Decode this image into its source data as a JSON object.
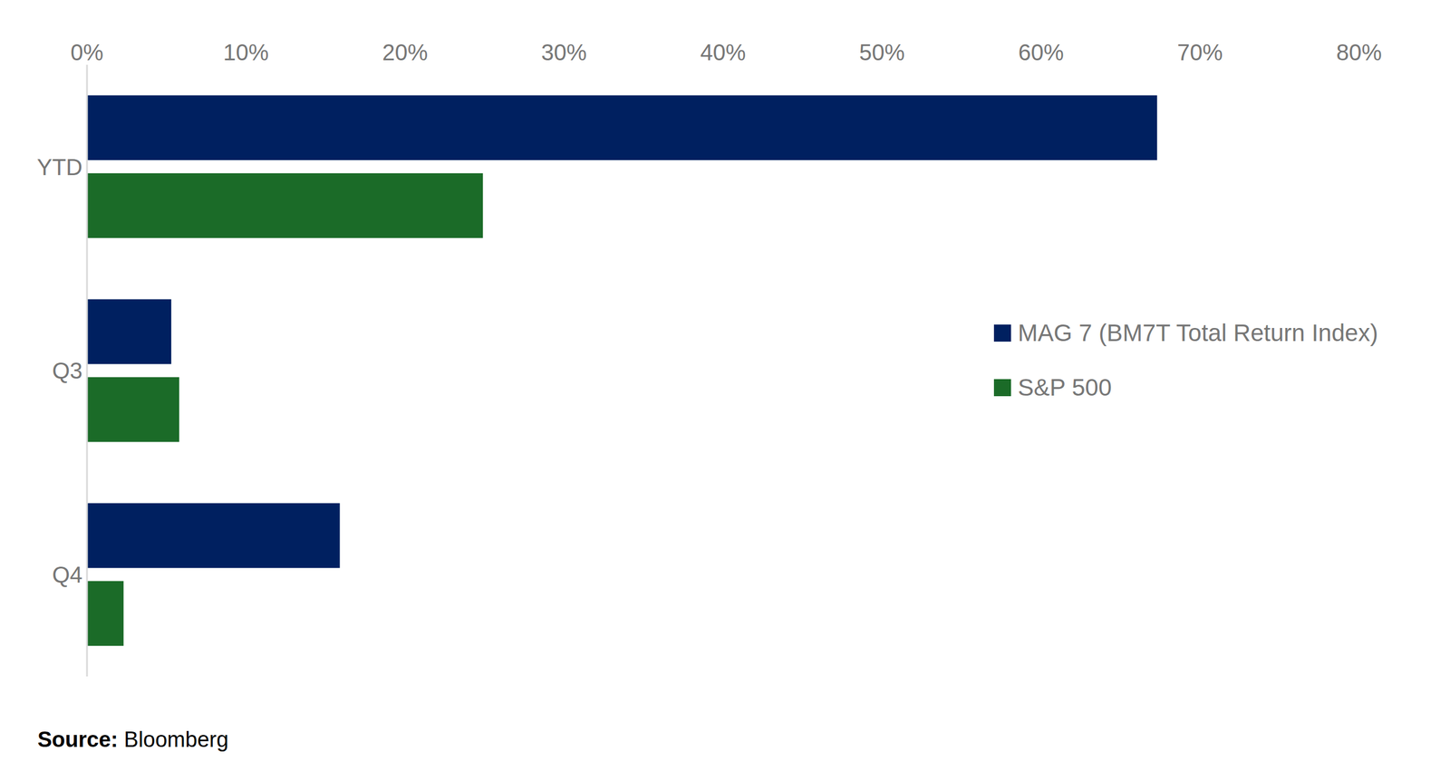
{
  "chart_data": {
    "type": "bar",
    "orientation": "horizontal",
    "categories": [
      "YTD",
      "Q3",
      "Q4"
    ],
    "series": [
      {
        "name": "MAG 7 (BM7T Total Return Index)",
        "color": "#002060",
        "values": [
          67.3,
          5.3,
          15.9
        ]
      },
      {
        "name": "S&P 500",
        "color": "#1b6b28",
        "values": [
          24.9,
          5.8,
          2.3
        ]
      }
    ],
    "xlim": [
      0,
      80
    ],
    "xticks": [
      {
        "value": 0,
        "label": "0%"
      },
      {
        "value": 10,
        "label": "10%"
      },
      {
        "value": 20,
        "label": "20%"
      },
      {
        "value": 30,
        "label": "30%"
      },
      {
        "value": 40,
        "label": "40%"
      },
      {
        "value": 50,
        "label": "50%"
      },
      {
        "value": 60,
        "label": "60%"
      },
      {
        "value": 70,
        "label": "70%"
      },
      {
        "value": 80,
        "label": "80%"
      }
    ],
    "grid": false,
    "legend": "right",
    "source_label": "Source:",
    "source": "Bloomberg"
  }
}
